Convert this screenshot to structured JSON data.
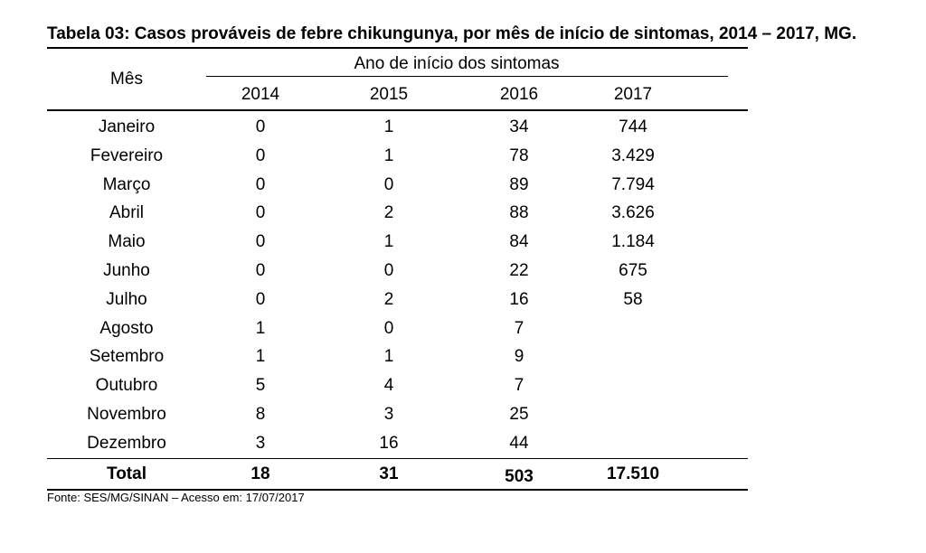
{
  "table": {
    "title": "Tabela 03: Casos prováveis de febre chikungunya, por mês de início de sintomas, 2014 – 2017, MG.",
    "month_header": "Mês",
    "group_header": "Ano de início dos sintomas",
    "years": [
      "2014",
      "2015",
      "2016",
      "2017"
    ],
    "rows": [
      {
        "month": "Janeiro",
        "values": [
          "0",
          "1",
          "34",
          "744"
        ]
      },
      {
        "month": "Fevereiro",
        "values": [
          "0",
          "1",
          "78",
          "3.429"
        ]
      },
      {
        "month": "Março",
        "values": [
          "0",
          "0",
          "89",
          "7.794"
        ]
      },
      {
        "month": "Abril",
        "values": [
          "0",
          "2",
          "88",
          "3.626"
        ]
      },
      {
        "month": "Maio",
        "values": [
          "0",
          "1",
          "84",
          "1.184"
        ]
      },
      {
        "month": "Junho",
        "values": [
          "0",
          "0",
          "22",
          "675"
        ]
      },
      {
        "month": "Julho",
        "values": [
          "0",
          "2",
          "16",
          "58"
        ]
      },
      {
        "month": "Agosto",
        "values": [
          "1",
          "0",
          "7",
          ""
        ]
      },
      {
        "month": "Setembro",
        "values": [
          "1",
          "1",
          "9",
          ""
        ]
      },
      {
        "month": "Outubro",
        "values": [
          "5",
          "4",
          "7",
          ""
        ]
      },
      {
        "month": "Novembro",
        "values": [
          "8",
          "3",
          "25",
          ""
        ]
      },
      {
        "month": "Dezembro",
        "values": [
          "3",
          "16",
          "44",
          ""
        ]
      }
    ],
    "total": {
      "label": "Total",
      "values": [
        "18",
        "31",
        "503",
        "17.510"
      ]
    },
    "source": "Fonte: SES/MG/SINAN – Acesso em: 17/07/2017"
  }
}
